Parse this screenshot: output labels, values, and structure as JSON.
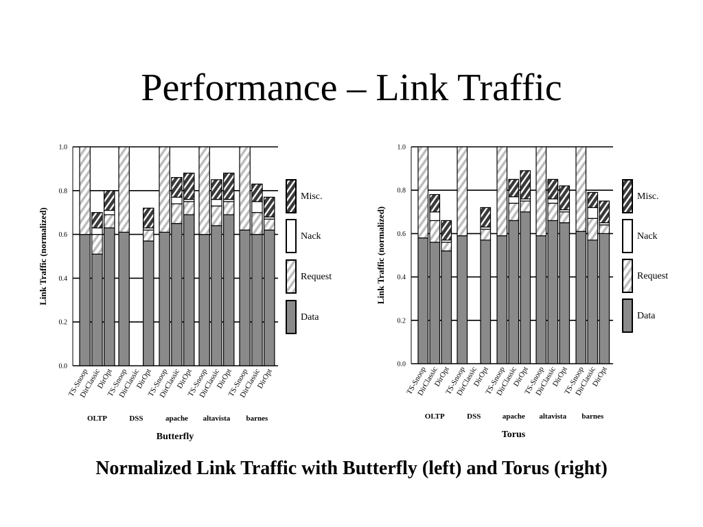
{
  "slide": {
    "title": "Performance – Link Traffic",
    "caption": "Normalized Link Traffic with Butterfly (left) and Torus (right)"
  },
  "colors": {
    "data": "#8a8a8a",
    "request_stripe": "#bdbdbd",
    "nack": "#ffffff",
    "misc_stripe": "#3a3a3a"
  },
  "chart_data": [
    {
      "type": "bar",
      "stacked": true,
      "title": "Butterfly",
      "ylabel": "Link Traffic (normalized)",
      "ylim": [
        0,
        1.0
      ],
      "yticks": [
        "0.0",
        "0.2",
        "0.4",
        "0.6",
        "0.8",
        "1.0"
      ],
      "grid": true,
      "legend_position": "right",
      "stack_order": [
        "Data",
        "Request",
        "Nack",
        "Misc."
      ],
      "groups": [
        {
          "name": "OLTP",
          "bars": [
            {
              "label": "TS-Snoop",
              "values": [
                0.6,
                0.4,
                0.0,
                0.0
              ]
            },
            {
              "label": "DirClassic",
              "values": [
                0.51,
                0.09,
                0.03,
                0.07
              ]
            },
            {
              "label": "DirOpt",
              "values": [
                0.63,
                0.06,
                0.02,
                0.09
              ]
            }
          ]
        },
        {
          "name": "DSS",
          "bars": [
            {
              "label": "TS-Snoop",
              "values": [
                0.61,
                0.39,
                0.0,
                0.0
              ]
            },
            {
              "label": "DirClassic",
              "values": [
                0,
                0,
                0,
                0
              ]
            },
            {
              "label": "DirOpt",
              "values": [
                0.57,
                0.05,
                0.01,
                0.09
              ]
            }
          ]
        },
        {
          "name": "apache",
          "bars": [
            {
              "label": "TS-Snoop",
              "values": [
                0.61,
                0.39,
                0.0,
                0.0
              ]
            },
            {
              "label": "DirClassic",
              "values": [
                0.65,
                0.09,
                0.03,
                0.09
              ]
            },
            {
              "label": "DirOpt",
              "values": [
                0.69,
                0.06,
                0.01,
                0.12
              ]
            }
          ]
        },
        {
          "name": "altavista",
          "bars": [
            {
              "label": "TS-Snoop",
              "values": [
                0.6,
                0.4,
                0.0,
                0.0
              ]
            },
            {
              "label": "DirClassic",
              "values": [
                0.64,
                0.09,
                0.03,
                0.09
              ]
            },
            {
              "label": "DirOpt",
              "values": [
                0.69,
                0.06,
                0.01,
                0.12
              ]
            }
          ]
        },
        {
          "name": "barnes",
          "bars": [
            {
              "label": "TS-Snoop",
              "values": [
                0.62,
                0.38,
                0.0,
                0.0
              ]
            },
            {
              "label": "DirClassic",
              "values": [
                0.6,
                0.1,
                0.05,
                0.08
              ]
            },
            {
              "label": "DirOpt",
              "values": [
                0.62,
                0.05,
                0.01,
                0.09
              ]
            }
          ]
        }
      ]
    },
    {
      "type": "bar",
      "stacked": true,
      "title": "Torus",
      "ylabel": "Link Traffic (normalized)",
      "ylim": [
        0,
        1.0
      ],
      "yticks": [
        "0.0",
        "0.2",
        "0.4",
        "0.6",
        "0.8",
        "1.0"
      ],
      "grid": true,
      "legend_position": "right",
      "stack_order": [
        "Data",
        "Request",
        "Nack",
        "Misc."
      ],
      "groups": [
        {
          "name": "OLTP",
          "bars": [
            {
              "label": "TS-Snoop",
              "values": [
                0.58,
                0.42,
                0.0,
                0.0
              ]
            },
            {
              "label": "DirClassic",
              "values": [
                0.56,
                0.1,
                0.04,
                0.08
              ]
            },
            {
              "label": "DirOpt",
              "values": [
                0.52,
                0.04,
                0.01,
                0.09
              ]
            }
          ]
        },
        {
          "name": "DSS",
          "bars": [
            {
              "label": "TS-Snoop",
              "values": [
                0.59,
                0.41,
                0.0,
                0.0
              ]
            },
            {
              "label": "DirClassic",
              "values": [
                0,
                0,
                0,
                0
              ]
            },
            {
              "label": "DirOpt",
              "values": [
                0.57,
                0.05,
                0.01,
                0.09
              ]
            }
          ]
        },
        {
          "name": "apache",
          "bars": [
            {
              "label": "TS-Snoop",
              "values": [
                0.59,
                0.41,
                0.0,
                0.0
              ]
            },
            {
              "label": "DirClassic",
              "values": [
                0.66,
                0.08,
                0.03,
                0.08
              ]
            },
            {
              "label": "DirOpt",
              "values": [
                0.7,
                0.05,
                0.01,
                0.13
              ]
            }
          ]
        },
        {
          "name": "altavista",
          "bars": [
            {
              "label": "TS-Snoop",
              "values": [
                0.59,
                0.41,
                0.0,
                0.0
              ]
            },
            {
              "label": "DirClassic",
              "values": [
                0.66,
                0.08,
                0.02,
                0.09
              ]
            },
            {
              "label": "DirOpt",
              "values": [
                0.65,
                0.05,
                0.01,
                0.11
              ]
            }
          ]
        },
        {
          "name": "barnes",
          "bars": [
            {
              "label": "TS-Snoop",
              "values": [
                0.61,
                0.39,
                0.0,
                0.0
              ]
            },
            {
              "label": "DirClassic",
              "values": [
                0.57,
                0.1,
                0.05,
                0.07
              ]
            },
            {
              "label": "DirOpt",
              "values": [
                0.6,
                0.04,
                0.01,
                0.1
              ]
            }
          ]
        }
      ]
    }
  ]
}
